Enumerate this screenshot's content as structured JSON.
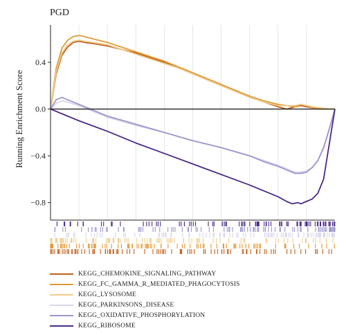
{
  "chart_data": {
    "type": "line",
    "title": "PGD",
    "xlabel": "",
    "ylabel": "Running Enrichment Score",
    "ylim": [
      -0.95,
      0.72
    ],
    "xlim": [
      0,
      1
    ],
    "yticks": [
      {
        "value": 0.4,
        "label": "0.4"
      },
      {
        "value": 0.0,
        "label": "0.0"
      },
      {
        "value": -0.4,
        "label": "−0.4"
      },
      {
        "value": -0.8,
        "label": "−0.8"
      }
    ],
    "grid": true,
    "legend_position": "bottom-left",
    "series": [
      {
        "name": "KEGG_CHEMOKINE_SIGNALING_PATHWAY",
        "color": "#c0601c",
        "x": [
          0,
          0.005,
          0.01,
          0.02,
          0.04,
          0.06,
          0.08,
          0.1,
          0.12,
          0.15,
          0.2,
          0.25,
          0.3,
          0.35,
          0.4,
          0.45,
          0.5,
          0.55,
          0.6,
          0.65,
          0.7,
          0.75,
          0.8,
          0.83,
          0.86,
          0.88,
          0.9,
          0.92,
          0.95,
          0.98,
          1.0
        ],
        "y": [
          0.0,
          0.07,
          0.15,
          0.3,
          0.46,
          0.53,
          0.57,
          0.58,
          0.57,
          0.56,
          0.54,
          0.51,
          0.48,
          0.44,
          0.4,
          0.36,
          0.31,
          0.26,
          0.21,
          0.16,
          0.11,
          0.06,
          0.02,
          0.0,
          0.02,
          0.03,
          0.02,
          0.01,
          0.01,
          0.0,
          0.0
        ]
      },
      {
        "name": "KEGG_FC_GAMMA_R_MEDIATED_PHAGOCYTOSIS",
        "color": "#e29a3a",
        "x": [
          0,
          0.005,
          0.01,
          0.02,
          0.04,
          0.06,
          0.08,
          0.1,
          0.12,
          0.15,
          0.2,
          0.25,
          0.3,
          0.35,
          0.4,
          0.45,
          0.5,
          0.55,
          0.6,
          0.65,
          0.7,
          0.75,
          0.8,
          0.83,
          0.86,
          0.88,
          0.9,
          0.92,
          0.95,
          0.98,
          1.0
        ],
        "y": [
          0.0,
          0.08,
          0.18,
          0.35,
          0.52,
          0.59,
          0.62,
          0.63,
          0.62,
          0.6,
          0.57,
          0.53,
          0.49,
          0.45,
          0.41,
          0.36,
          0.31,
          0.26,
          0.21,
          0.16,
          0.11,
          0.07,
          0.04,
          0.03,
          0.02,
          0.04,
          0.03,
          0.01,
          0.0,
          0.0,
          0.0
        ]
      },
      {
        "name": "KEGG_LYSOSOME",
        "color": "#f0cc8c",
        "x": [
          0,
          0.005,
          0.01,
          0.02,
          0.04,
          0.06,
          0.08,
          0.1,
          0.12,
          0.15,
          0.2,
          0.25,
          0.3,
          0.35,
          0.4,
          0.45,
          0.5,
          0.55,
          0.6,
          0.65,
          0.7,
          0.75,
          0.8,
          0.83,
          0.86,
          0.88,
          0.9,
          0.92,
          0.95,
          0.98,
          1.0
        ],
        "y": [
          0.0,
          0.07,
          0.16,
          0.32,
          0.48,
          0.55,
          0.58,
          0.59,
          0.58,
          0.57,
          0.55,
          0.51,
          0.47,
          0.43,
          0.39,
          0.35,
          0.3,
          0.25,
          0.2,
          0.15,
          0.1,
          0.06,
          0.03,
          0.03,
          0.03,
          0.04,
          0.03,
          0.02,
          0.01,
          0.0,
          0.0
        ]
      },
      {
        "name": "KEGG_PARKINSONS_DISEASE",
        "color": "#d9d4ea",
        "x": [
          0,
          0.01,
          0.02,
          0.04,
          0.06,
          0.1,
          0.15,
          0.2,
          0.3,
          0.4,
          0.5,
          0.6,
          0.7,
          0.75,
          0.8,
          0.83,
          0.86,
          0.88,
          0.9,
          0.92,
          0.94,
          0.96,
          0.98,
          1.0
        ],
        "y": [
          0.0,
          0.02,
          0.05,
          0.07,
          0.06,
          0.03,
          -0.02,
          -0.07,
          -0.14,
          -0.2,
          -0.27,
          -0.33,
          -0.4,
          -0.44,
          -0.48,
          -0.51,
          -0.54,
          -0.54,
          -0.53,
          -0.5,
          -0.44,
          -0.34,
          -0.18,
          0.0
        ]
      },
      {
        "name": "KEGG_OXIDATIVE_PHOSPHORYLATION",
        "color": "#9d96cc",
        "x": [
          0,
          0.01,
          0.02,
          0.04,
          0.06,
          0.1,
          0.15,
          0.2,
          0.3,
          0.4,
          0.5,
          0.6,
          0.7,
          0.75,
          0.8,
          0.83,
          0.86,
          0.88,
          0.9,
          0.92,
          0.94,
          0.96,
          0.98,
          1.0
        ],
        "y": [
          0.0,
          0.04,
          0.08,
          0.1,
          0.08,
          0.04,
          -0.01,
          -0.06,
          -0.13,
          -0.2,
          -0.27,
          -0.33,
          -0.4,
          -0.45,
          -0.49,
          -0.52,
          -0.55,
          -0.55,
          -0.54,
          -0.5,
          -0.44,
          -0.33,
          -0.17,
          0.0
        ]
      },
      {
        "name": "KEGG_RIBOSOME",
        "color": "#4a2a87",
        "x": [
          0,
          0.05,
          0.1,
          0.2,
          0.3,
          0.4,
          0.5,
          0.6,
          0.7,
          0.75,
          0.8,
          0.83,
          0.85,
          0.87,
          0.88,
          0.9,
          0.92,
          0.94,
          0.96,
          0.98,
          1.0
        ],
        "y": [
          0.0,
          -0.05,
          -0.1,
          -0.19,
          -0.29,
          -0.38,
          -0.47,
          -0.56,
          -0.65,
          -0.7,
          -0.75,
          -0.79,
          -0.81,
          -0.8,
          -0.81,
          -0.79,
          -0.77,
          -0.72,
          -0.6,
          -0.3,
          0.0
        ]
      }
    ],
    "gene_hits": [
      {
        "series": 5,
        "density": "right"
      },
      {
        "series": 4,
        "density": "right"
      },
      {
        "series": 3,
        "density": "right"
      },
      {
        "series": 2,
        "density": "left"
      },
      {
        "series": 1,
        "density": "left"
      },
      {
        "series": 0,
        "density": "left"
      }
    ]
  }
}
